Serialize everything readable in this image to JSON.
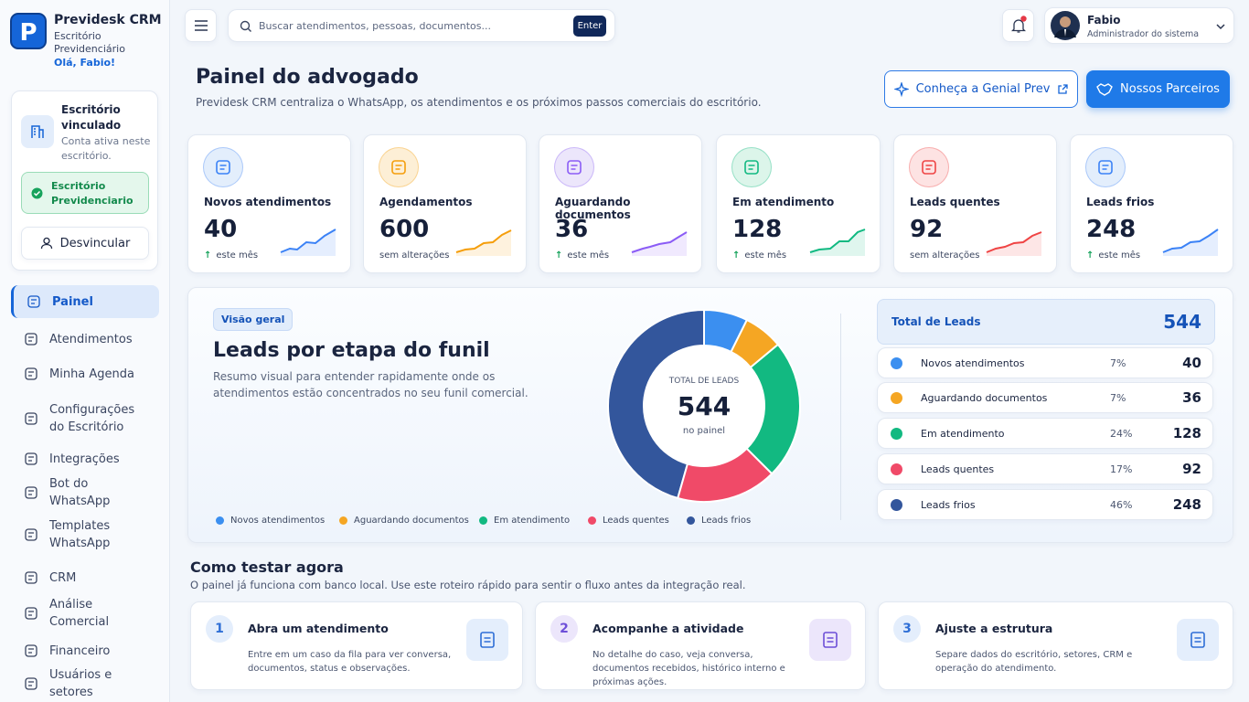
{
  "sidebar": {
    "brand": "Previdesk CRM",
    "office_line1": "Escritório",
    "office_line2": "Previdenciário",
    "greeting": "Olá, Fabio!",
    "linked_title": "Escritório vinculado",
    "linked_desc": "Conta ativa neste escritório.",
    "linked_badge": "Escritório Previdenciario",
    "unlink": "Desvincular",
    "nav": [
      "Painel",
      "Atendimentos",
      "Minha Agenda",
      "Configurações do Escritório",
      "Integrações",
      "Bot do WhatsApp",
      "Templates WhatsApp",
      "CRM",
      "Análise Comercial",
      "Financeiro",
      "Usuários e setores"
    ]
  },
  "topbar": {
    "search_placeholder": "Buscar atendimentos, pessoas, documentos...",
    "enter": "Enter",
    "user_name": "Fabio",
    "user_role": "Administrador do sistema"
  },
  "header": {
    "title": "Painel do advogado",
    "subtitle": "Previdesk CRM centraliza o WhatsApp, os atendimentos e os próximos passos comerciais do escritório.",
    "button_genial": "Conheça a Genial Prev",
    "button_partners": "Nossos Parceiros"
  },
  "stats": [
    {
      "label": "Novos atendimentos",
      "value": 40,
      "note": "este mês",
      "arrow": true
    },
    {
      "label": "Agendamentos",
      "value": 600,
      "note": "sem alterações",
      "arrow": false
    },
    {
      "label": "Aguardando documentos",
      "value": 36,
      "note": "este mês",
      "arrow": true
    },
    {
      "label": "Em atendimento",
      "value": 128,
      "note": "este mês",
      "arrow": true
    },
    {
      "label": "Leads quentes",
      "value": 92,
      "note": "sem alterações",
      "arrow": false
    },
    {
      "label": "Leads frios",
      "value": 248,
      "note": "este mês",
      "arrow": true
    }
  ],
  "funnel": {
    "tag": "Visão geral",
    "title": "Leads por etapa do funil",
    "desc": "Resumo visual para entender rapidamente onde os atendimentos estão concentrados no seu funil comercial.",
    "center_label": "TOTAL DE LEADS",
    "total": 544,
    "center_note": "no painel",
    "total_label": "Total de Leads",
    "segments": [
      {
        "name": "Novos atendimentos",
        "color": "#3b8ff0",
        "value": 40,
        "pct": "7%"
      },
      {
        "name": "Aguardando documentos",
        "color": "#f5a623",
        "value": 36,
        "pct": "7%"
      },
      {
        "name": "Em atendimento",
        "color": "#12b981",
        "value": 128,
        "pct": "24%"
      },
      {
        "name": "Leads quentes",
        "color": "#f04a68",
        "value": 92,
        "pct": "17%"
      },
      {
        "name": "Leads frios",
        "color": "#33569c",
        "value": 248,
        "pct": "46%"
      }
    ]
  },
  "steps": {
    "title": "Como testar agora",
    "desc": "O painel já funciona com banco local. Use este roteiro rápido para sentir o fluxo antes da integração real.",
    "items": [
      {
        "num": 1,
        "title": "Abra um atendimento",
        "desc": "Entre em um caso da fila para ver conversa, documentos, status e observações."
      },
      {
        "num": 2,
        "title": "Acompanhe a atividade",
        "desc": "No detalhe do caso, veja conversa, documentos recebidos, histórico interno e próximas ações."
      },
      {
        "num": 3,
        "title": "Ajuste a estrutura",
        "desc": "Separe dados do escritório, setores, CRM e operação do atendimento."
      }
    ]
  }
}
